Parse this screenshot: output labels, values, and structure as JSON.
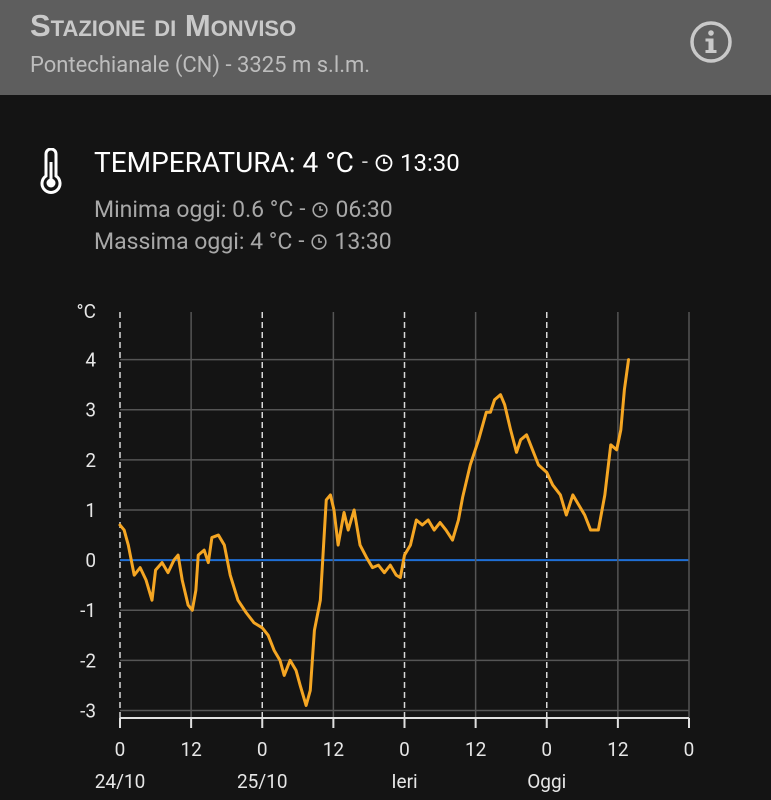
{
  "header": {
    "title": "Stazione di Monviso",
    "subtitle": "Pontechianale (CN) - 3325 m s.l.m."
  },
  "current": {
    "label": "TEMPERATURA: 4 °C",
    "separator": "-",
    "time": "13:30"
  },
  "minimum": {
    "label": "Minima oggi: 0.6 °C",
    "separator": "-",
    "time": "06:30"
  },
  "maximum": {
    "label": "Massima oggi: 4 °C",
    "separator": "-",
    "time": "13:30"
  },
  "chart_data": {
    "type": "line",
    "y_label": "°C",
    "x": [
      0,
      0.7,
      1.4,
      2.4,
      3.4,
      4.4,
      5.4,
      6,
      7.1,
      8.1,
      9.1,
      9.8,
      10.5,
      11.5,
      12.2,
      12.8,
      13.2,
      14.2,
      14.9,
      15.5,
      16.6,
      17.6,
      18.6,
      19.9,
      21.3,
      22.6,
      24,
      25,
      26,
      27,
      27.7,
      28.7,
      29.7,
      30.4,
      31.4,
      32.1,
      32.8,
      33.8,
      34.8,
      35.5,
      36.1,
      36.8,
      37.8,
      38.5,
      39.5,
      40.5,
      41.6,
      42.6,
      43.6,
      44.6,
      45.6,
      46.6,
      47.3,
      48,
      49,
      50,
      51,
      52,
      53,
      54,
      55,
      56.1,
      57.1,
      57.8,
      59.1,
      60.5,
      61.8,
      62.5,
      63.2,
      64.2,
      64.9,
      65.9,
      66.9,
      67.6,
      68.6,
      69.6,
      70.6,
      72,
      73,
      74.3,
      75.3,
      76.4,
      77.4,
      78.4,
      79.4,
      80.7,
      81.8,
      82.8,
      83.8,
      84.5,
      85.1,
      85.8
    ],
    "series": [
      {
        "name": "Temperatura",
        "color": "#f5a623",
        "values": [
          0.7,
          0.6,
          0.3,
          -0.3,
          -0.15,
          -0.4,
          -0.8,
          -0.2,
          -0.05,
          -0.25,
          0,
          0.1,
          -0.4,
          -0.9,
          -1,
          -0.6,
          0.1,
          0.2,
          -0.05,
          0.45,
          0.5,
          0.3,
          -0.3,
          -0.8,
          -1.05,
          -1.25,
          -1.35,
          -1.5,
          -1.8,
          -2,
          -2.3,
          -2,
          -2.2,
          -2.5,
          -2.9,
          -2.6,
          -1.4,
          -0.8,
          1.2,
          1.3,
          1,
          0.3,
          0.95,
          0.6,
          1,
          0.3,
          0.05,
          -0.15,
          -0.1,
          -0.25,
          -0.1,
          -0.3,
          -0.35,
          0.1,
          0.3,
          0.8,
          0.7,
          0.8,
          0.6,
          0.75,
          0.6,
          0.4,
          0.8,
          1.25,
          1.9,
          2.4,
          2.95,
          2.95,
          3.2,
          3.3,
          3.1,
          2.6,
          2.15,
          2.4,
          2.5,
          2.2,
          1.9,
          1.75,
          1.5,
          1.3,
          0.9,
          1.3,
          1.1,
          0.9,
          0.6,
          0.6,
          1.3,
          2.3,
          2.2,
          2.6,
          3.4,
          4
        ]
      }
    ],
    "xlim": [
      0,
      96
    ],
    "xticks": [
      0,
      12,
      {
        "value": 24,
        "label": "0"
      },
      {
        "value": 36,
        "label": "12"
      },
      {
        "value": 48,
        "label": "0"
      },
      {
        "value": 60,
        "label": "12"
      },
      {
        "value": 72,
        "label": "0"
      },
      {
        "value": 84,
        "label": "12"
      },
      {
        "value": 96,
        "label": "0"
      }
    ],
    "day_labels": [
      {
        "value": 0,
        "label": "24/10"
      },
      {
        "value": 24,
        "label": "25/10"
      },
      {
        "value": 48,
        "label": "Ieri"
      },
      {
        "value": 72,
        "label": "Oggi"
      }
    ],
    "ylim": [
      -3.15,
      4.95
    ],
    "yticks": [
      -3,
      -2,
      -1,
      0,
      1,
      2,
      3,
      4
    ],
    "grid": true,
    "grid_color": "#555555",
    "zero_line_color": "#1f6fd6",
    "axis_color": "#e0e0e0"
  }
}
